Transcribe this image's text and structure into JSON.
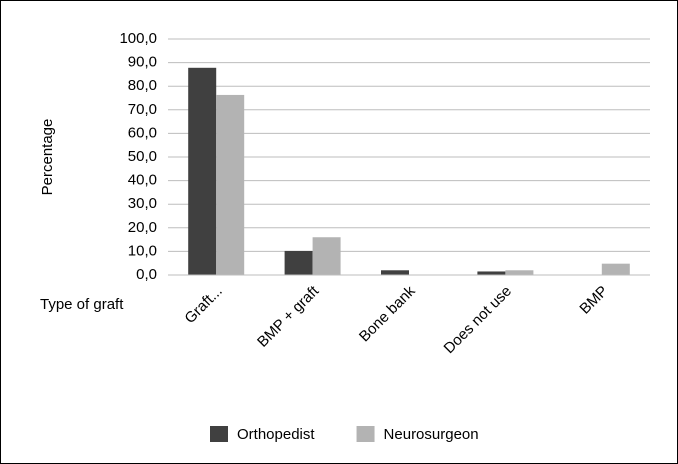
{
  "chart_data": {
    "type": "bar",
    "y_label": "Percentage",
    "x_label": "Type of graft",
    "categories": [
      "Graft...",
      "BMP + graft",
      "Bone bank",
      "Does not use",
      "BMP"
    ],
    "series": [
      {
        "name": "Orthopedist",
        "color": "#404040",
        "values": [
          87.8,
          10.2,
          2.0,
          1.5,
          0
        ]
      },
      {
        "name": "Neurosurgeon",
        "color": "#b3b3b3",
        "values": [
          76.3,
          16.0,
          0,
          2.0,
          4.8
        ]
      }
    ],
    "ylim": [
      0,
      100
    ],
    "yticks": [
      {
        "value": 0,
        "label": "0,0"
      },
      {
        "value": 10,
        "label": "10,0"
      },
      {
        "value": 20,
        "label": "20,0"
      },
      {
        "value": 30,
        "label": "30,0"
      },
      {
        "value": 40,
        "label": "40,0"
      },
      {
        "value": 50,
        "label": "50,0"
      },
      {
        "value": 60,
        "label": "60,0"
      },
      {
        "value": 70,
        "label": "70,0"
      },
      {
        "value": 80,
        "label": "80,0"
      },
      {
        "value": 90,
        "label": "90,0"
      },
      {
        "value": 100,
        "label": "100,0"
      }
    ],
    "grid": true
  }
}
